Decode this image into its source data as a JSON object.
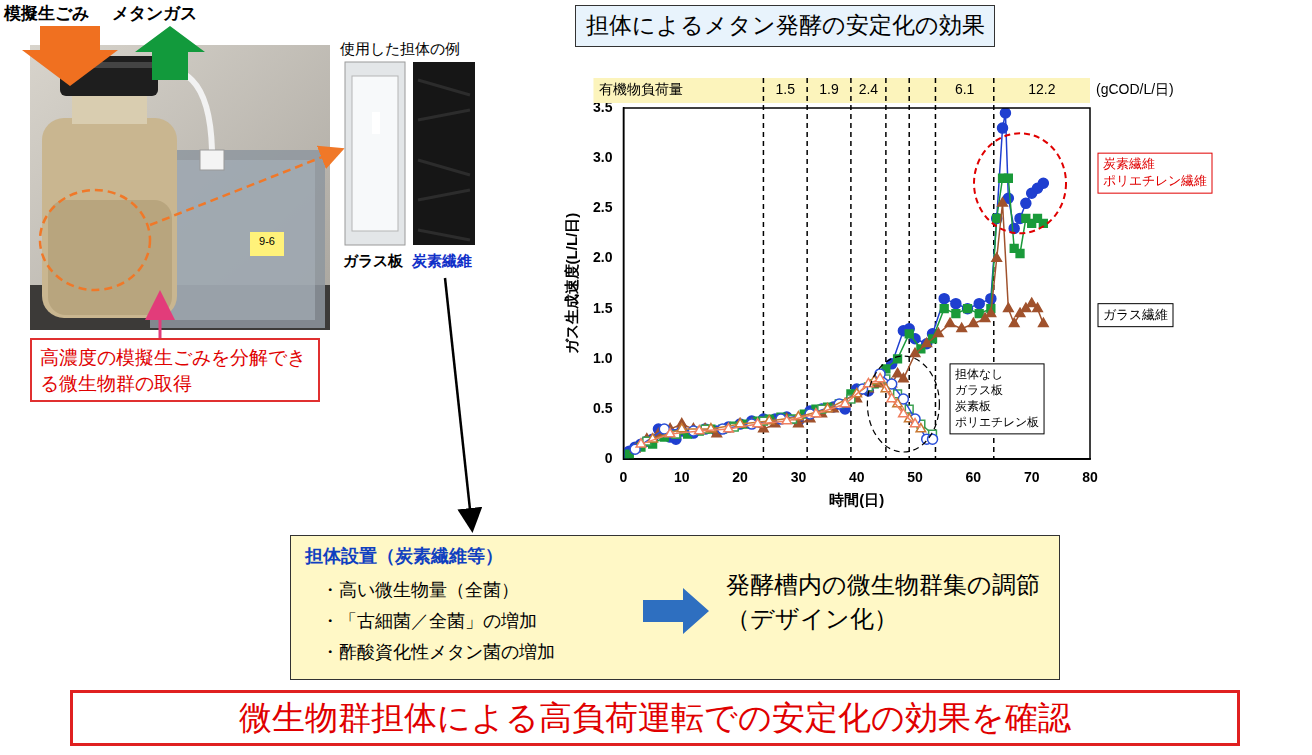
{
  "photo_panel": {
    "input_label": "模擬生ごみ",
    "output_label": "メタンガス",
    "bag_tag": "9-6",
    "examples_title": "使用した担体の例",
    "examples": [
      {
        "label": "ガラス板",
        "color": "#000000"
      },
      {
        "label": "炭素繊維",
        "color": "#1030c8"
      }
    ],
    "callout": "高濃度の模擬生ごみを分解できる微生物群の取得"
  },
  "title": "担体によるメタン発酵の安定化の効果",
  "chart_data": {
    "type": "line",
    "x_label": "時間(日)",
    "y_label": "ガス生成速度(L/L/日)",
    "xlim": [
      0,
      80
    ],
    "xticks": [
      0,
      10,
      20,
      30,
      40,
      50,
      60,
      70,
      80
    ],
    "ylim": [
      0,
      3.5
    ],
    "yticks": [
      0,
      0.5,
      {
        "value": 1,
        "label": "1.0"
      },
      1.5,
      {
        "value": 2,
        "label": "2.0"
      },
      2.5,
      {
        "value": 3,
        "label": "3.0"
      },
      3.5
    ],
    "grid": false,
    "load_band": {
      "label": "有機物負荷量",
      "unit": "(gCOD/L/日)",
      "boundaries": [
        0,
        24,
        31.5,
        39,
        45,
        49,
        53.5,
        63.5,
        80
      ],
      "values": [
        null,
        1.5,
        1.9,
        2.4,
        null,
        null,
        6.1,
        12.2
      ]
    },
    "series": [
      {
        "name": "担体なし",
        "color": "#f08060",
        "marker": "open-triangle",
        "x": [
          3,
          8,
          13,
          18,
          23,
          28,
          33,
          38,
          42,
          44,
          46,
          48,
          50
        ],
        "values": [
          0.15,
          0.25,
          0.28,
          0.3,
          0.35,
          0.38,
          0.45,
          0.55,
          0.75,
          0.8,
          0.6,
          0.45,
          0.35
        ]
      },
      {
        "name": "ガラス板",
        "color": "#c87832",
        "marker": "open-triangle",
        "x": [
          5,
          10,
          15,
          20,
          25,
          30,
          35,
          40,
          43,
          45,
          47,
          49,
          51
        ],
        "values": [
          0.2,
          0.3,
          0.3,
          0.35,
          0.38,
          0.42,
          0.5,
          0.65,
          0.78,
          0.7,
          0.55,
          0.4,
          0.3
        ]
      },
      {
        "name": "炭素板",
        "color": "#2a4fd8",
        "marker": "open-circle",
        "x": [
          2,
          7,
          12,
          17,
          22,
          27,
          32,
          37,
          41,
          44,
          46,
          48,
          50,
          52,
          53
        ],
        "values": [
          0.1,
          0.3,
          0.28,
          0.3,
          0.35,
          0.4,
          0.45,
          0.55,
          0.7,
          0.85,
          0.75,
          0.6,
          0.4,
          0.2,
          0.2
        ]
      },
      {
        "name": "ポリエチレン板",
        "color": "#3aa050",
        "marker": "open-square",
        "x": [
          4,
          9,
          14,
          19,
          24,
          29,
          34,
          39,
          42,
          45,
          47,
          49,
          51,
          53
        ],
        "values": [
          0.18,
          0.25,
          0.3,
          0.32,
          0.38,
          0.4,
          0.5,
          0.6,
          0.72,
          0.8,
          0.65,
          0.5,
          0.35,
          0.25
        ]
      },
      {
        "name": "ガラス繊維",
        "color": "#a0522d",
        "marker": "triangle",
        "x": [
          2,
          4,
          6,
          8,
          10,
          12,
          14,
          16,
          18,
          20,
          22,
          24,
          26,
          28,
          30,
          32,
          34,
          36,
          38,
          40,
          42,
          44,
          46,
          47,
          48,
          50,
          52,
          54,
          56,
          58,
          60,
          62,
          63,
          64,
          65,
          66,
          67,
          68,
          69,
          70,
          71,
          72
        ],
        "values": [
          0.1,
          0.2,
          0.25,
          0.3,
          0.35,
          0.3,
          0.3,
          0.25,
          0.3,
          0.35,
          0.35,
          0.3,
          0.35,
          0.4,
          0.35,
          0.4,
          0.45,
          0.5,
          0.55,
          0.6,
          0.7,
          0.75,
          0.75,
          0.85,
          0.8,
          1.05,
          1.15,
          1.25,
          1.35,
          1.3,
          1.35,
          1.4,
          1.45,
          2.0,
          2.55,
          1.5,
          1.35,
          1.45,
          1.5,
          1.55,
          1.5,
          1.35
        ]
      },
      {
        "name": "ポリエチレン繊維",
        "color": "#1a9a3a",
        "marker": "square",
        "x": [
          1,
          3,
          5,
          7,
          9,
          11,
          13,
          15,
          17,
          19,
          21,
          23,
          25,
          27,
          29,
          31,
          33,
          35,
          37,
          39,
          41,
          43,
          45,
          47,
          49,
          51,
          53,
          55,
          57,
          59,
          61,
          63,
          64,
          65,
          66,
          67,
          68,
          69,
          70,
          71,
          72
        ],
        "values": [
          0.05,
          0.12,
          0.15,
          0.22,
          0.25,
          0.25,
          0.28,
          0.3,
          0.3,
          0.33,
          0.35,
          0.38,
          0.4,
          0.42,
          0.4,
          0.45,
          0.5,
          0.52,
          0.55,
          0.65,
          0.7,
          0.75,
          0.9,
          1.0,
          1.25,
          1.1,
          1.2,
          1.5,
          1.45,
          1.5,
          1.45,
          1.5,
          2.4,
          2.8,
          2.8,
          2.1,
          2.05,
          2.4,
          2.35,
          2.4,
          2.35
        ]
      },
      {
        "name": "炭素繊維",
        "color": "#1f3fd0",
        "marker": "circle",
        "x": [
          0,
          1,
          2,
          3,
          4,
          5,
          6,
          7,
          8,
          9,
          10,
          12,
          14,
          16,
          18,
          20,
          22,
          24,
          26,
          28,
          30,
          32,
          34,
          36,
          38,
          40,
          42,
          44,
          46,
          48,
          49,
          50,
          52,
          53,
          55,
          57,
          59,
          61,
          63,
          64,
          65,
          65.5,
          66,
          67,
          68,
          69,
          70,
          71,
          72
        ],
        "values": [
          0.02,
          0.08,
          0.12,
          0.15,
          0.18,
          0.2,
          0.3,
          0.25,
          0.22,
          0.2,
          0.28,
          0.26,
          0.3,
          0.28,
          0.32,
          0.35,
          0.38,
          0.4,
          0.4,
          0.42,
          0.38,
          0.48,
          0.5,
          0.52,
          0.5,
          0.7,
          0.68,
          0.8,
          0.95,
          1.28,
          1.3,
          1.2,
          1.15,
          1.25,
          1.6,
          1.55,
          1.5,
          1.55,
          1.6,
          2.4,
          3.3,
          3.45,
          2.6,
          2.3,
          2.4,
          2.55,
          2.65,
          2.7,
          2.75
        ]
      }
    ],
    "legend": false,
    "annotations": [
      {
        "lines": [
          "炭素繊維",
          "ポリエチレン繊維"
        ],
        "color": "#e00000"
      },
      {
        "lines": [
          "ガラス繊維"
        ],
        "color": "#000000"
      },
      {
        "lines": [
          "担体なし",
          "ガラス板",
          "炭素板",
          "ポリエチレン板"
        ],
        "color": "#000000"
      }
    ]
  },
  "summary": {
    "heading": "担体設置（炭素繊維等）",
    "points": [
      "・高い微生物量（全菌）",
      "・「古細菌／全菌」の増加",
      "・酢酸資化性メタン菌の増加"
    ],
    "result": "発酵槽内の微生物群集の調節（デザイン化）"
  },
  "conclusion": "微生物群担体による高負荷運転での安定化の効果を確認"
}
